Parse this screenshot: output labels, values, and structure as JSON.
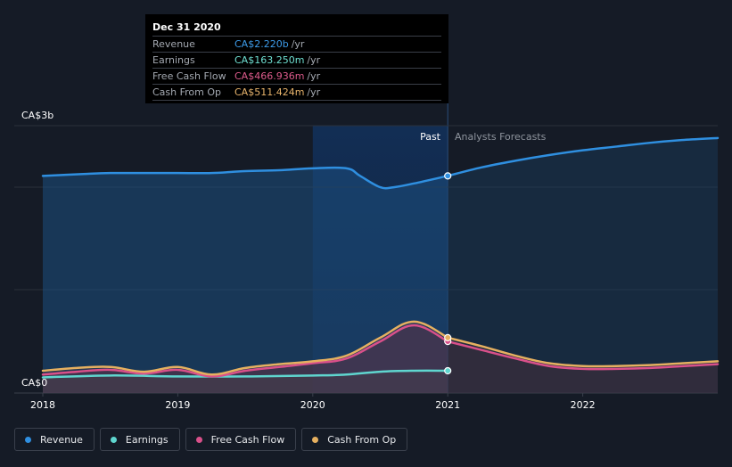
{
  "tooltip": {
    "date": "Dec 31 2020",
    "rows": [
      {
        "name": "Revenue",
        "value": "CA$2.220b",
        "unit": "/yr",
        "color": "#3d9be9"
      },
      {
        "name": "Earnings",
        "value": "CA$163.250m",
        "unit": "/yr",
        "color": "#6fe0d2"
      },
      {
        "name": "Free Cash Flow",
        "value": "CA$466.936m",
        "unit": "/yr",
        "color": "#dd5b8c"
      },
      {
        "name": "Cash From Op",
        "value": "CA$511.424m",
        "unit": "/yr",
        "color": "#e8b46c"
      }
    ]
  },
  "labels": {
    "past": "Past",
    "forecast": "Analysts Forecasts"
  },
  "legend": [
    {
      "label": "Revenue",
      "color": "#2f8fe0"
    },
    {
      "label": "Earnings",
      "color": "#5fd6cf"
    },
    {
      "label": "Free Cash Flow",
      "color": "#d9508a"
    },
    {
      "label": "Cash From Op",
      "color": "#e6b060"
    }
  ],
  "chart_data": {
    "type": "area",
    "y_tick_labels": [
      "CA$3b",
      "CA$0"
    ],
    "ylim": [
      0,
      2.6
    ],
    "xlim": [
      2018.0,
      2023.0
    ],
    "x_tick_labels": [
      "2018",
      "2019",
      "2020",
      "2021",
      "2022"
    ],
    "x_ticks": [
      2018,
      2019,
      2020,
      2021,
      2022
    ],
    "past_end": 2021.0,
    "highlight_start": 2020.0,
    "grid": true,
    "legend_position": "bottom-left",
    "series": [
      {
        "name": "Revenue",
        "color": "#2f8fe0",
        "x": [
          2018.0,
          2018.3,
          2018.5,
          2018.75,
          2019.0,
          2019.25,
          2019.5,
          2019.75,
          2020.0,
          2020.25,
          2020.35,
          2020.5,
          2020.6,
          2020.75,
          2021.0
        ],
        "values": [
          2.22,
          2.24,
          2.25,
          2.25,
          2.25,
          2.25,
          2.27,
          2.28,
          2.3,
          2.3,
          2.22,
          2.1,
          2.1,
          2.14,
          2.22
        ]
      },
      {
        "name": "Revenue Forecast",
        "color": "#2f8fe0",
        "x": [
          2021.0,
          2021.25,
          2021.5,
          2021.75,
          2022.0,
          2022.25,
          2022.5,
          2022.75,
          2023.0
        ],
        "values": [
          2.22,
          2.31,
          2.38,
          2.44,
          2.49,
          2.53,
          2.57,
          2.6,
          2.62
        ]
      },
      {
        "name": "Earnings",
        "color": "#5fd6cf",
        "x": [
          2018.0,
          2018.5,
          2019.0,
          2019.5,
          2020.0,
          2020.25,
          2020.5,
          2020.75,
          2021.0
        ],
        "values": [
          0.09,
          0.11,
          0.1,
          0.1,
          0.11,
          0.12,
          0.15,
          0.16,
          0.16
        ]
      },
      {
        "name": "Free Cash Flow",
        "color": "#d9508a",
        "x": [
          2018.0,
          2018.25,
          2018.5,
          2018.75,
          2019.0,
          2019.25,
          2019.5,
          2019.75,
          2020.0,
          2020.25,
          2020.5,
          2020.75,
          2021.0
        ],
        "values": [
          0.12,
          0.15,
          0.17,
          0.13,
          0.17,
          0.1,
          0.16,
          0.2,
          0.24,
          0.29,
          0.47,
          0.64,
          0.47
        ]
      },
      {
        "name": "Free Cash Flow Forecast",
        "color": "#d9508a",
        "x": [
          2021.0,
          2021.25,
          2021.5,
          2021.75,
          2022.0,
          2022.25,
          2022.5,
          2022.75,
          2023.0
        ],
        "values": [
          0.47,
          0.38,
          0.29,
          0.21,
          0.18,
          0.18,
          0.19,
          0.21,
          0.23
        ]
      },
      {
        "name": "Cash From Op",
        "color": "#e6b060",
        "x": [
          2018.0,
          2018.25,
          2018.5,
          2018.75,
          2019.0,
          2019.25,
          2019.5,
          2019.75,
          2020.0,
          2020.25,
          2020.5,
          2020.75,
          2021.0
        ],
        "values": [
          0.16,
          0.19,
          0.2,
          0.15,
          0.2,
          0.12,
          0.19,
          0.23,
          0.26,
          0.32,
          0.51,
          0.68,
          0.51
        ]
      },
      {
        "name": "Cash From Op Forecast",
        "color": "#e6b060",
        "x": [
          2021.0,
          2021.25,
          2021.5,
          2021.75,
          2022.0,
          2022.25,
          2022.5,
          2022.75,
          2023.0
        ],
        "values": [
          0.51,
          0.42,
          0.32,
          0.24,
          0.21,
          0.21,
          0.22,
          0.24,
          0.26
        ]
      }
    ]
  }
}
